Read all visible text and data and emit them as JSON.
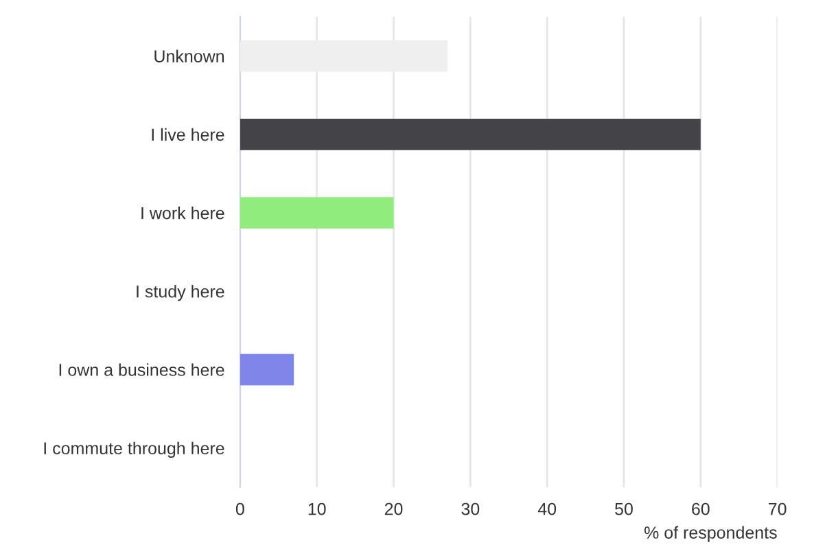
{
  "chart_data": {
    "type": "bar",
    "orientation": "horizontal",
    "categories": [
      "Unknown",
      "I live here",
      "I work here",
      "I study here",
      "I own a business here",
      "I commute through here"
    ],
    "values": [
      27,
      60,
      20,
      0,
      7,
      0
    ],
    "colors": [
      "#efefef",
      "#434348",
      "#90ed7d",
      "#f7a35c",
      "#8085e9",
      "#f15c80"
    ],
    "xlabel": "% of respondents",
    "xlim": [
      0,
      70
    ],
    "xticks": [
      0,
      10,
      20,
      30,
      40,
      50,
      60,
      70
    ],
    "grid": "x",
    "legend": false
  }
}
